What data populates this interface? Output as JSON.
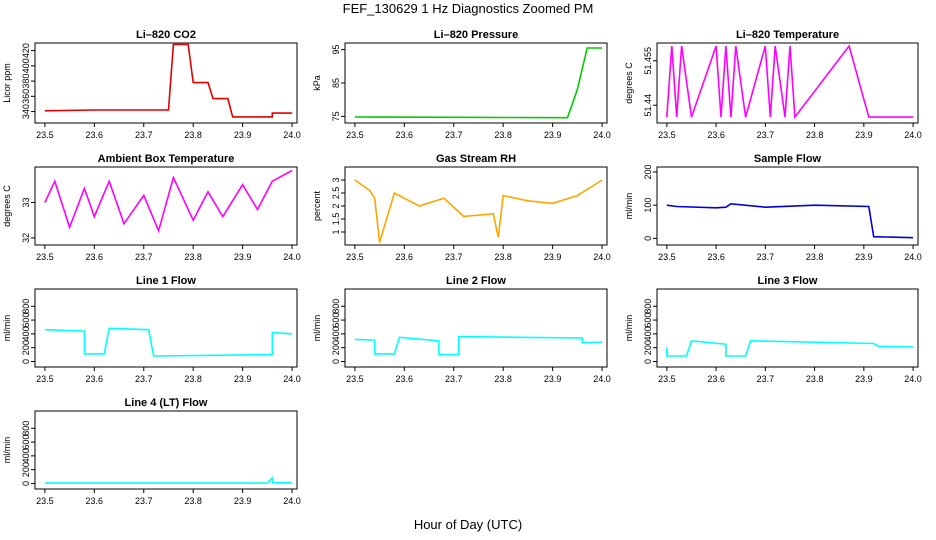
{
  "title": "FEF_130629  1 Hz Diagnostics Zoomed PM",
  "xlabel": "Hour of Day (UTC)",
  "colors": {
    "red": "#e00000",
    "green": "#00cc00",
    "magenta": "#ff00ff",
    "orange": "#ffa500",
    "blue": "#0000dd",
    "cyan": "#00ffff"
  },
  "chart_data": [
    {
      "type": "line",
      "title": "Li–820 CO2",
      "ylabel": "Licor ppm",
      "color": "red",
      "xlim": [
        23.48,
        24.01
      ],
      "ylim": [
        325,
        430
      ],
      "xticks": [
        "23.5",
        "23.6",
        "23.7",
        "23.8",
        "23.9",
        "24.0"
      ],
      "yticks": [
        340,
        360,
        380,
        400,
        420
      ],
      "series": [
        {
          "x": [
            23.5,
            23.6,
            23.75,
            23.76,
            23.79,
            23.8,
            23.83,
            23.84,
            23.87,
            23.88,
            23.96,
            23.96,
            24.0
          ],
          "y": [
            341,
            342,
            342,
            428,
            428,
            378,
            378,
            357,
            357,
            333,
            333,
            338,
            338
          ]
        }
      ]
    },
    {
      "type": "line",
      "title": "Li–820 Pressure",
      "ylabel": "kPa",
      "color": "green",
      "xlim": [
        23.48,
        24.01
      ],
      "ylim": [
        73,
        97
      ],
      "xticks": [
        "23.5",
        "23.6",
        "23.7",
        "23.8",
        "23.9",
        "24.0"
      ],
      "yticks": [
        75,
        85,
        95
      ],
      "series": [
        {
          "x": [
            23.5,
            23.7,
            23.93,
            23.95,
            23.97,
            24.0
          ],
          "y": [
            74.8,
            74.7,
            74.6,
            83,
            95.5,
            95.5
          ]
        }
      ]
    },
    {
      "type": "line",
      "title": "Li–820 Temperature",
      "ylabel": "degrees C",
      "color": "magenta",
      "xlim": [
        23.48,
        24.01
      ],
      "ylim": [
        51.434,
        51.461
      ],
      "xticks": [
        "23.5",
        "23.6",
        "23.7",
        "23.8",
        "23.9",
        "24.0"
      ],
      "yticks": [
        51.44,
        51.455
      ],
      "series": [
        {
          "x": [
            23.5,
            23.51,
            23.52,
            23.53,
            23.55,
            23.6,
            23.61,
            23.62,
            23.63,
            23.64,
            23.66,
            23.7,
            23.71,
            23.72,
            23.74,
            23.75,
            23.76,
            23.87,
            23.91,
            24.0
          ],
          "y": [
            51.436,
            51.46,
            51.436,
            51.46,
            51.436,
            51.46,
            51.436,
            51.46,
            51.436,
            51.46,
            51.436,
            51.46,
            51.436,
            51.46,
            51.436,
            51.46,
            51.436,
            51.46,
            51.436,
            51.436
          ]
        }
      ]
    },
    {
      "type": "line",
      "title": "Ambient Box Temperature",
      "ylabel": "degrees C",
      "color": "magenta",
      "xlim": [
        23.48,
        24.01
      ],
      "ylim": [
        31.8,
        34.0
      ],
      "xticks": [
        "23.5",
        "23.6",
        "23.7",
        "23.8",
        "23.9",
        "24.0"
      ],
      "yticks": [
        32.0,
        33.0
      ],
      "series": [
        {
          "x": [
            23.5,
            23.52,
            23.55,
            23.58,
            23.6,
            23.63,
            23.66,
            23.7,
            23.73,
            23.76,
            23.8,
            23.83,
            23.86,
            23.9,
            23.93,
            23.96,
            24.0
          ],
          "y": [
            33.0,
            33.6,
            32.3,
            33.4,
            32.6,
            33.6,
            32.4,
            33.2,
            32.2,
            33.7,
            32.5,
            33.3,
            32.6,
            33.5,
            32.8,
            33.6,
            33.9
          ]
        }
      ]
    },
    {
      "type": "line",
      "title": "Gas Stream RH",
      "ylabel": "percent",
      "color": "orange",
      "xlim": [
        23.48,
        24.01
      ],
      "ylim": [
        0.5,
        3.5
      ],
      "xticks": [
        "23.5",
        "23.6",
        "23.7",
        "23.8",
        "23.9",
        "24.0"
      ],
      "yticks": [
        1.0,
        1.5,
        2.0,
        2.5,
        3.0
      ],
      "series": [
        {
          "x": [
            23.5,
            23.53,
            23.54,
            23.55,
            23.58,
            23.63,
            23.68,
            23.72,
            23.78,
            23.79,
            23.8,
            23.85,
            23.9,
            23.95,
            24.0
          ],
          "y": [
            3.0,
            2.6,
            2.3,
            0.6,
            2.5,
            2.0,
            2.3,
            1.6,
            1.7,
            0.8,
            2.4,
            2.2,
            2.1,
            2.4,
            3.0
          ]
        }
      ]
    },
    {
      "type": "line",
      "title": "Sample Flow",
      "ylabel": "ml/min",
      "color": "blue",
      "xlim": [
        23.48,
        24.01
      ],
      "ylim": [
        -20,
        215
      ],
      "xticks": [
        "23.5",
        "23.6",
        "23.7",
        "23.8",
        "23.9",
        "24.0"
      ],
      "yticks": [
        0,
        100,
        200
      ],
      "series": [
        {
          "x": [
            23.5,
            23.52,
            23.6,
            23.62,
            23.63,
            23.7,
            23.8,
            23.91,
            23.92,
            24.0
          ],
          "y": [
            100,
            96,
            92,
            94,
            104,
            94,
            100,
            96,
            5,
            2
          ]
        }
      ]
    },
    {
      "type": "line",
      "title": "Line 1 Flow",
      "ylabel": "ml/min",
      "color": "cyan",
      "xlim": [
        23.48,
        24.01
      ],
      "ylim": [
        -80,
        1050
      ],
      "xticks": [
        "23.5",
        "23.6",
        "23.7",
        "23.8",
        "23.9",
        "24.0"
      ],
      "yticks": [
        0,
        200,
        400,
        600,
        800
      ],
      "series": [
        {
          "x": [
            23.5,
            23.58,
            23.58,
            23.62,
            23.63,
            23.71,
            23.72,
            23.96,
            23.96,
            24.0
          ],
          "y": [
            460,
            440,
            110,
            110,
            480,
            460,
            80,
            100,
            420,
            400
          ]
        }
      ]
    },
    {
      "type": "line",
      "title": "Line 2 Flow",
      "ylabel": "ml/min",
      "color": "cyan",
      "xlim": [
        23.48,
        24.01
      ],
      "ylim": [
        -80,
        1050
      ],
      "xticks": [
        "23.5",
        "23.6",
        "23.7",
        "23.8",
        "23.9",
        "24.0"
      ],
      "yticks": [
        0,
        200,
        400,
        600,
        800
      ],
      "series": [
        {
          "x": [
            23.5,
            23.54,
            23.54,
            23.58,
            23.59,
            23.67,
            23.67,
            23.71,
            23.71,
            23.96,
            23.96,
            24.0
          ],
          "y": [
            320,
            310,
            110,
            110,
            350,
            300,
            100,
            100,
            360,
            340,
            270,
            280
          ]
        }
      ]
    },
    {
      "type": "line",
      "title": "Line 3 Flow",
      "ylabel": "ml/min",
      "color": "cyan",
      "xlim": [
        23.48,
        24.01
      ],
      "ylim": [
        -80,
        1050
      ],
      "xticks": [
        "23.5",
        "23.6",
        "23.7",
        "23.8",
        "23.9",
        "24.0"
      ],
      "yticks": [
        0,
        200,
        400,
        600,
        800
      ],
      "series": [
        {
          "x": [
            23.5,
            23.5,
            23.54,
            23.55,
            23.62,
            23.62,
            23.66,
            23.67,
            23.92,
            23.93,
            24.0
          ],
          "y": [
            200,
            80,
            80,
            300,
            250,
            80,
            80,
            300,
            260,
            220,
            210
          ]
        }
      ]
    },
    {
      "type": "line",
      "title": "Line 4 (LT) Flow",
      "ylabel": "ml/min",
      "color": "cyan",
      "xlim": [
        23.48,
        24.01
      ],
      "ylim": [
        -80,
        1050
      ],
      "xticks": [
        "23.5",
        "23.6",
        "23.7",
        "23.8",
        "23.9",
        "24.0"
      ],
      "yticks": [
        0,
        200,
        400,
        600,
        800
      ],
      "series": [
        {
          "x": [
            23.5,
            23.95,
            23.96,
            23.96,
            24.0
          ],
          "y": [
            5,
            5,
            80,
            10,
            10
          ]
        }
      ]
    }
  ]
}
